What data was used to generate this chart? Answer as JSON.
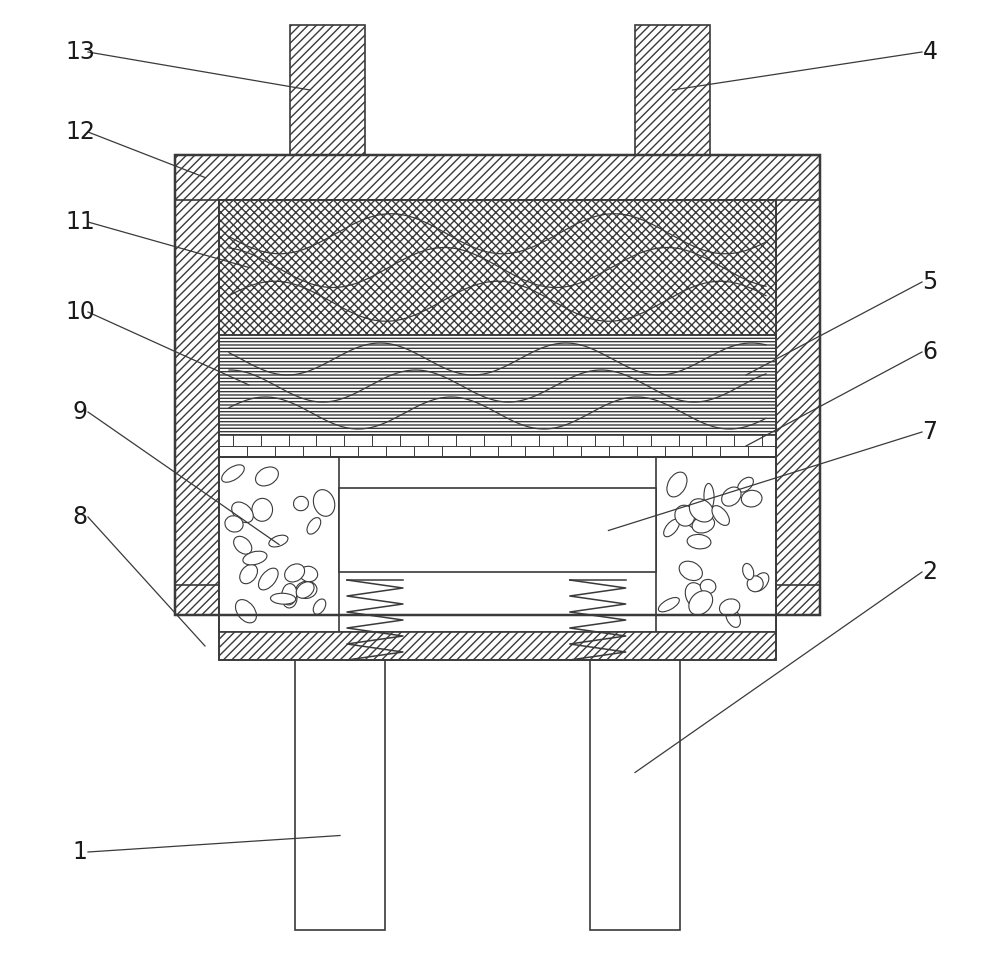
{
  "bg_color": "#ffffff",
  "line_color": "#3a3a3a",
  "figsize": [
    10.0,
    9.72
  ],
  "lw": 1.2,
  "label_fs": 17,
  "label_lw": 0.9
}
